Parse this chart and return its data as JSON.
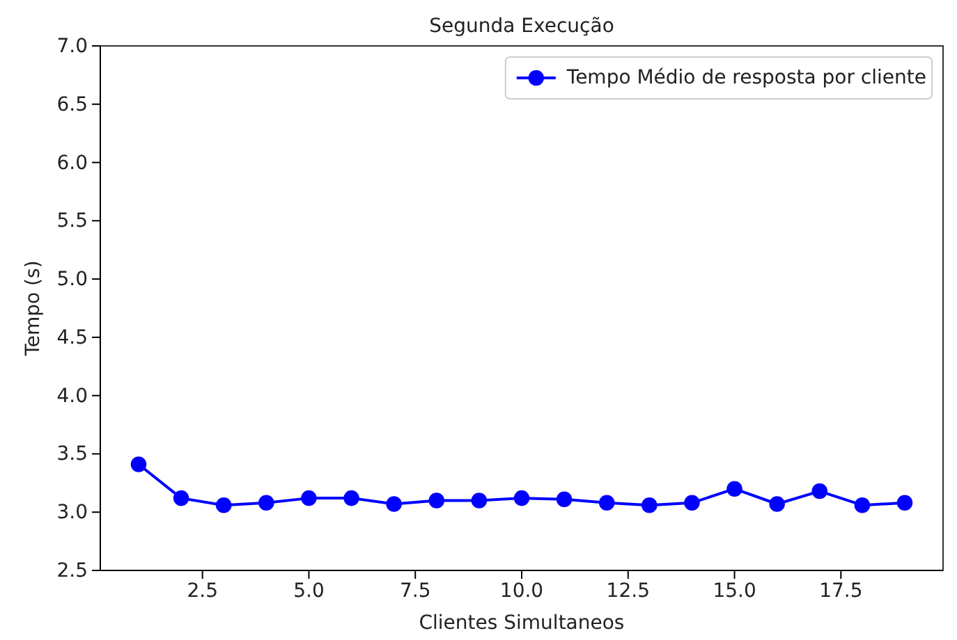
{
  "chart_data": {
    "type": "line",
    "title": "Segunda Execução",
    "xlabel": "Clientes Simultaneos",
    "ylabel": "Tempo (s)",
    "x": [
      1,
      2,
      3,
      4,
      5,
      6,
      7,
      8,
      9,
      10,
      11,
      12,
      13,
      14,
      15,
      16,
      17,
      18,
      19
    ],
    "series": [
      {
        "name": "Tempo Médio de resposta por cliente",
        "color": "#0000ff",
        "values": [
          3.41,
          3.12,
          3.06,
          3.08,
          3.12,
          3.12,
          3.07,
          3.1,
          3.1,
          3.12,
          3.11,
          3.08,
          3.06,
          3.08,
          3.2,
          3.07,
          3.18,
          3.06,
          3.08
        ]
      }
    ],
    "xlim": [
      0.1,
      19.9
    ],
    "xticks": [
      {
        "value": 2.5,
        "label": "2.5"
      },
      {
        "value": 5,
        "label": "5.0"
      },
      {
        "value": 7.5,
        "label": "7.5"
      },
      {
        "value": 10,
        "label": "10.0"
      },
      {
        "value": 12.5,
        "label": "12.5"
      },
      {
        "value": 15,
        "label": "15.0"
      },
      {
        "value": 17.5,
        "label": "17.5"
      }
    ],
    "ylim": [
      2.5,
      7
    ],
    "yticks": [
      2.5,
      {
        "value": 3,
        "label": "3.0"
      },
      3.5,
      {
        "value": 4,
        "label": "4.0"
      },
      4.5,
      {
        "value": 5,
        "label": "5.0"
      },
      5.5,
      {
        "value": 6,
        "label": "6.0"
      },
      6.5,
      {
        "value": 7,
        "label": "7.0"
      }
    ],
    "legend": "top right",
    "marker": "circle",
    "line_style": "solid",
    "grid": false
  }
}
